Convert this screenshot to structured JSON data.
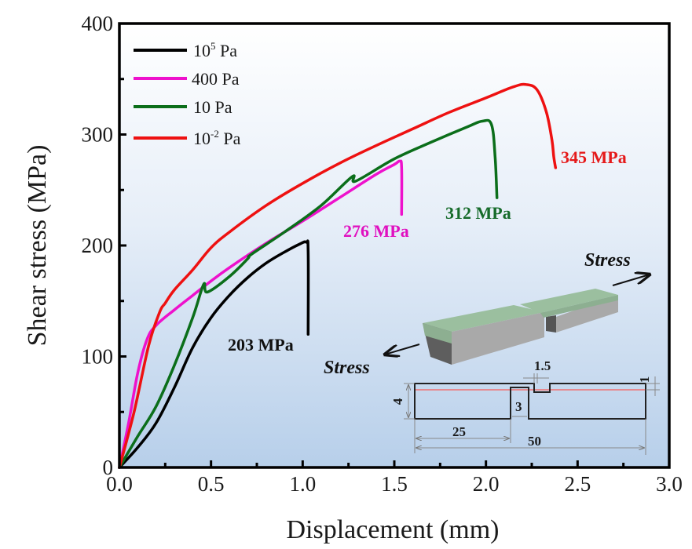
{
  "chart_data": {
    "type": "line",
    "title": "",
    "xlabel": "Displacement (mm)",
    "ylabel": "Shear stress (MPa)",
    "xlim": [
      0.0,
      3.0
    ],
    "ylim": [
      0,
      400
    ],
    "xticks": [
      "0.0",
      "0.5",
      "1.0",
      "1.5",
      "2.0",
      "2.5",
      "3.0"
    ],
    "xtick_values": [
      0.0,
      0.5,
      1.0,
      1.5,
      2.0,
      2.5,
      3.0
    ],
    "yticks": [
      "0",
      "100",
      "200",
      "300",
      "400"
    ],
    "ytick_values": [
      0,
      100,
      200,
      300,
      400
    ],
    "grid": false,
    "legend_position": "top-left",
    "background": "vertical gradient white to light blue",
    "series": [
      {
        "name": "10^5 Pa",
        "label_base": "10",
        "label_sup": "5",
        "label_unit": " Pa",
        "color": "#000000",
        "x": [
          0.0,
          0.1,
          0.2,
          0.3,
          0.4,
          0.5,
          0.6,
          0.7,
          0.8,
          0.9,
          0.98,
          1.02,
          1.03,
          1.03
        ],
        "y": [
          0,
          18,
          40,
          72,
          108,
          135,
          155,
          171,
          184,
          194,
          201,
          203,
          195,
          120
        ],
        "peak_label": "203 MPa",
        "peak_value": 203
      },
      {
        "name": "400 Pa",
        "label_base": "400",
        "label_sup": "",
        "label_unit": " Pa",
        "color": "#ee11cc",
        "x": [
          0.0,
          0.05,
          0.1,
          0.15,
          0.2,
          0.3,
          0.4,
          0.5,
          0.6,
          0.8,
          1.0,
          1.2,
          1.4,
          1.5,
          1.53,
          1.54,
          1.54
        ],
        "y": [
          0,
          40,
          85,
          115,
          128,
          142,
          155,
          168,
          180,
          202,
          222,
          243,
          264,
          273,
          276,
          270,
          228
        ],
        "peak_label": "276 MPa",
        "peak_value": 276
      },
      {
        "name": "10 Pa",
        "label_base": "10",
        "label_sup": "",
        "label_unit": " Pa",
        "color": "#0b6e1a",
        "x": [
          0.0,
          0.1,
          0.2,
          0.3,
          0.4,
          0.46,
          0.48,
          0.6,
          0.7,
          0.72,
          0.9,
          1.1,
          1.27,
          1.29,
          1.5,
          1.7,
          1.9,
          1.98,
          2.03,
          2.05,
          2.06
        ],
        "y": [
          0,
          28,
          55,
          92,
          135,
          165,
          158,
          172,
          188,
          192,
          212,
          236,
          262,
          258,
          278,
          293,
          307,
          312,
          309,
          280,
          243
        ],
        "peak_label": "312 MPa",
        "peak_value": 312
      },
      {
        "name": "10^-2 Pa",
        "label_base": "10",
        "label_sup": "-2",
        "label_unit": " Pa",
        "color": "#ee1111",
        "x": [
          0.0,
          0.08,
          0.16,
          0.22,
          0.25,
          0.3,
          0.4,
          0.5,
          0.6,
          0.8,
          1.0,
          1.2,
          1.4,
          1.6,
          1.8,
          2.0,
          2.15,
          2.22,
          2.28,
          2.33,
          2.36,
          2.37,
          2.38
        ],
        "y": [
          0,
          50,
          110,
          140,
          148,
          160,
          178,
          198,
          212,
          236,
          256,
          274,
          290,
          305,
          320,
          333,
          343,
          345,
          340,
          320,
          295,
          280,
          270
        ],
        "peak_label": "345 MPa",
        "peak_value": 345
      }
    ],
    "annotations": [
      "203 MPa",
      "276 MPa",
      "312 MPa",
      "345 MPa"
    ]
  },
  "inset": {
    "stress_label_left": "Stress",
    "stress_label_right": "Stress",
    "dimensions": {
      "total_length": "50",
      "half_length": "25",
      "thickness": "4",
      "overlap_height": "3",
      "notch_width": "1.5",
      "top_layer": "1"
    },
    "colors": {
      "top_layer": "#9bbf9f",
      "side_gray": "#a8a8a8",
      "dark_face": "#5a5a5a",
      "weld_line": "#f07070"
    }
  }
}
